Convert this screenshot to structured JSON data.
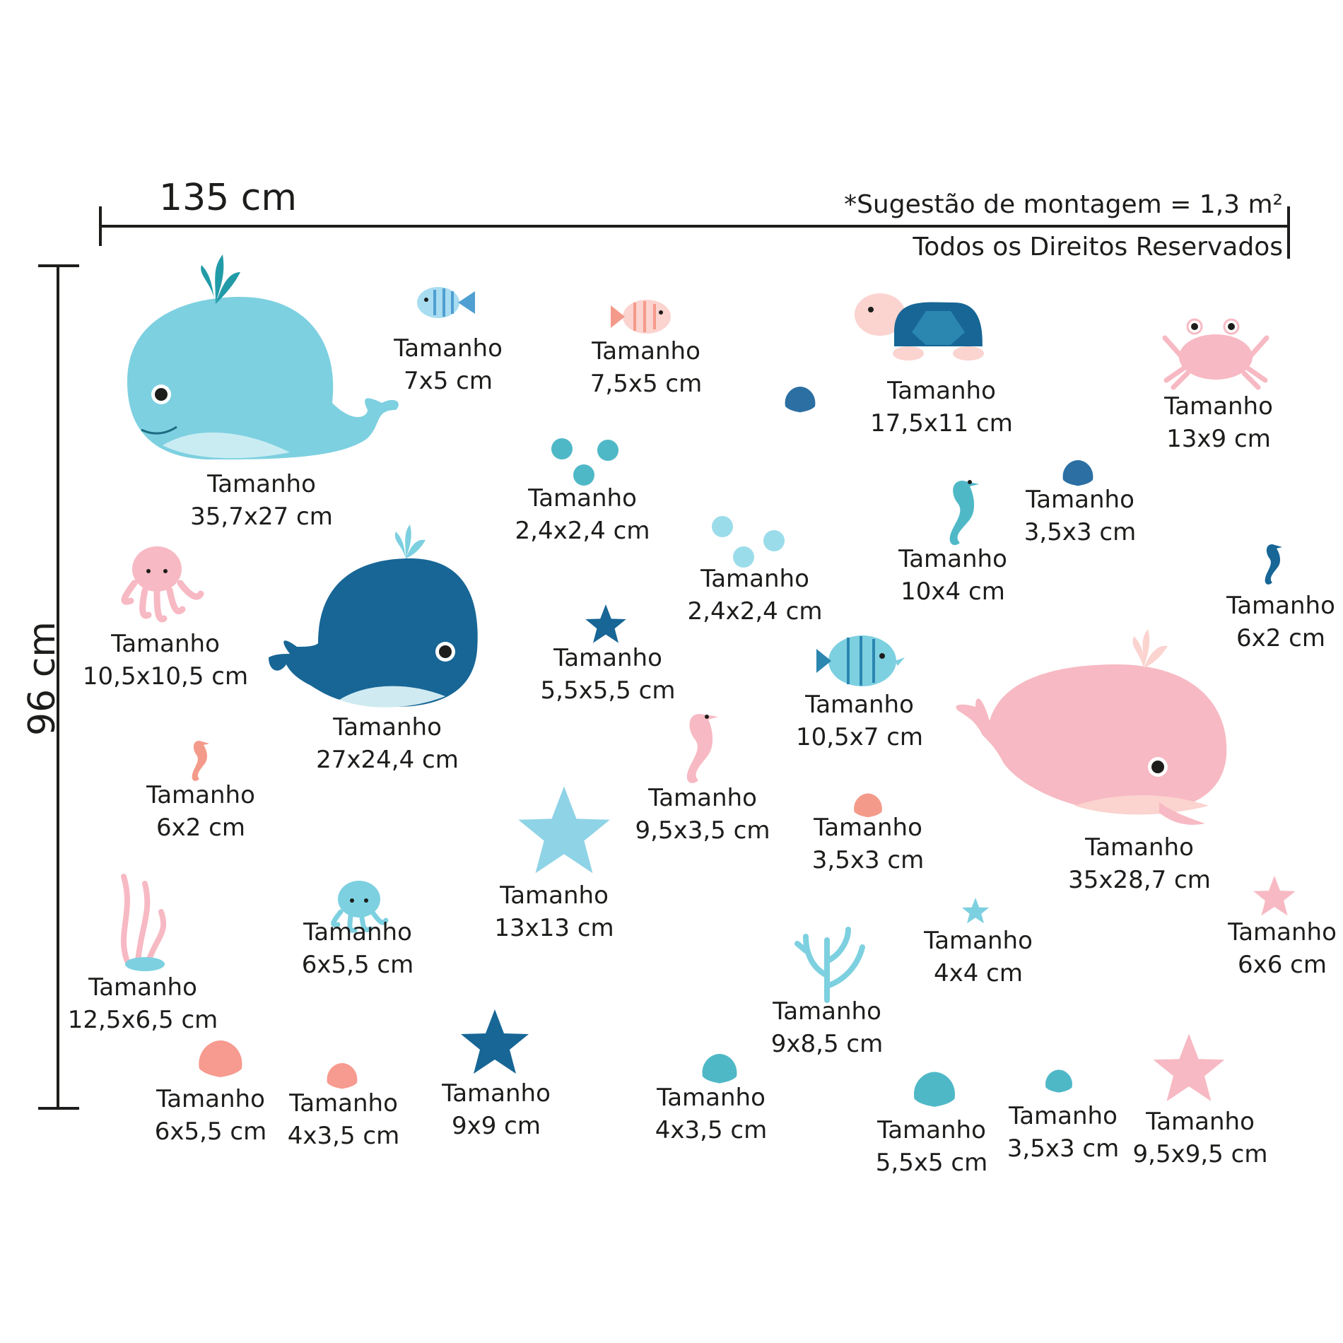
{
  "header": {
    "width_label": "135 cm",
    "height_label": "96 cm",
    "suggestion": "*Sugestão de montagem = 1,3 m²",
    "rights": "Todos os Direitos Reservados"
  },
  "colors": {
    "light_blue": "#7dd0e0",
    "dark_blue": "#176696",
    "teal": "#4fb8c7",
    "pink": "#f7b9c3",
    "light_pink": "#fbd3cf",
    "text": "#1d1d1b"
  },
  "stickers": [
    {
      "name": "whale-light-blue",
      "label": "Tamanho",
      "size": "35,7x27 cm"
    },
    {
      "name": "fish-blue-small",
      "label": "Tamanho",
      "size": "7x5 cm"
    },
    {
      "name": "fish-pink-small",
      "label": "Tamanho",
      "size": "7,5x5 cm"
    },
    {
      "name": "turtle",
      "label": "Tamanho",
      "size": "17,5x11 cm"
    },
    {
      "name": "crab",
      "label": "Tamanho",
      "size": "13x9 cm"
    },
    {
      "name": "bubbles-teal",
      "label": "Tamanho",
      "size": "2,4x2,4 cm"
    },
    {
      "name": "shell-blue-small",
      "label": "Tamanho",
      "size": "3,5x3 cm"
    },
    {
      "name": "seahorse-blue",
      "label": "Tamanho",
      "size": "10x4 cm"
    },
    {
      "name": "bubbles-light",
      "label": "Tamanho",
      "size": "2,4x2,4 cm"
    },
    {
      "name": "octopus-pink",
      "label": "Tamanho",
      "size": "10,5x10,5 cm"
    },
    {
      "name": "whale-dark-blue",
      "label": "Tamanho",
      "size": "27x24,4 cm"
    },
    {
      "name": "starfish-dark-small",
      "label": "Tamanho",
      "size": "5,5x5,5 cm"
    },
    {
      "name": "seahorse-dark-small",
      "label": "Tamanho",
      "size": "6x2 cm"
    },
    {
      "name": "fish-blue-large",
      "label": "Tamanho",
      "size": "10,5x7 cm"
    },
    {
      "name": "seahorse-pink-small",
      "label": "Tamanho",
      "size": "6x2 cm"
    },
    {
      "name": "seahorse-pink",
      "label": "Tamanho",
      "size": "9,5x3,5 cm"
    },
    {
      "name": "shell-pink-small",
      "label": "Tamanho",
      "size": "3,5x3 cm"
    },
    {
      "name": "whale-pink",
      "label": "Tamanho",
      "size": "35x28,7 cm"
    },
    {
      "name": "starfish-light-blue",
      "label": "Tamanho",
      "size": "13x13 cm"
    },
    {
      "name": "seaweed",
      "label": "Tamanho",
      "size": "12,5x6,5 cm"
    },
    {
      "name": "octopus-blue",
      "label": "Tamanho",
      "size": "6x5,5 cm"
    },
    {
      "name": "starfish-blue-tiny",
      "label": "Tamanho",
      "size": "4x4 cm"
    },
    {
      "name": "starfish-pink-small",
      "label": "Tamanho",
      "size": "6x6 cm"
    },
    {
      "name": "coral",
      "label": "Tamanho",
      "size": "9x8,5 cm"
    },
    {
      "name": "shell-pink-medium",
      "label": "Tamanho",
      "size": "6x5,5 cm"
    },
    {
      "name": "shell-pink-tiny",
      "label": "Tamanho",
      "size": "4x3,5 cm"
    },
    {
      "name": "starfish-dark-blue",
      "label": "Tamanho",
      "size": "9x9 cm"
    },
    {
      "name": "shell-teal-small",
      "label": "Tamanho",
      "size": "4x3,5 cm"
    },
    {
      "name": "shell-teal-medium",
      "label": "Tamanho",
      "size": "5,5x5 cm"
    },
    {
      "name": "shell-teal-tiny",
      "label": "Tamanho",
      "size": "3,5x3 cm"
    },
    {
      "name": "starfish-pink",
      "label": "Tamanho",
      "size": "9,5x9,5 cm"
    }
  ]
}
